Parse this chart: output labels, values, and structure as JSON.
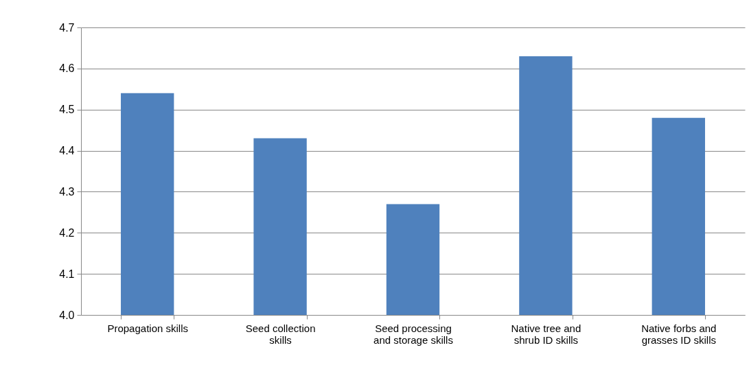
{
  "chart_data": {
    "type": "bar",
    "categories": [
      "Propagation skills",
      "Seed collection skills",
      "Seed processing and storage skills",
      "Native tree and shrub ID skills",
      "Native forbs and grasses ID skills"
    ],
    "values": [
      4.54,
      4.43,
      4.27,
      4.63,
      4.48
    ],
    "color": "#4f81bd",
    "ylim": [
      4.0,
      4.7
    ],
    "yticks": [
      {
        "value": 4.0,
        "label": "4.0"
      },
      4.1,
      4.2,
      4.3,
      4.4,
      4.5,
      4.6,
      4.7
    ],
    "grid": "y"
  }
}
